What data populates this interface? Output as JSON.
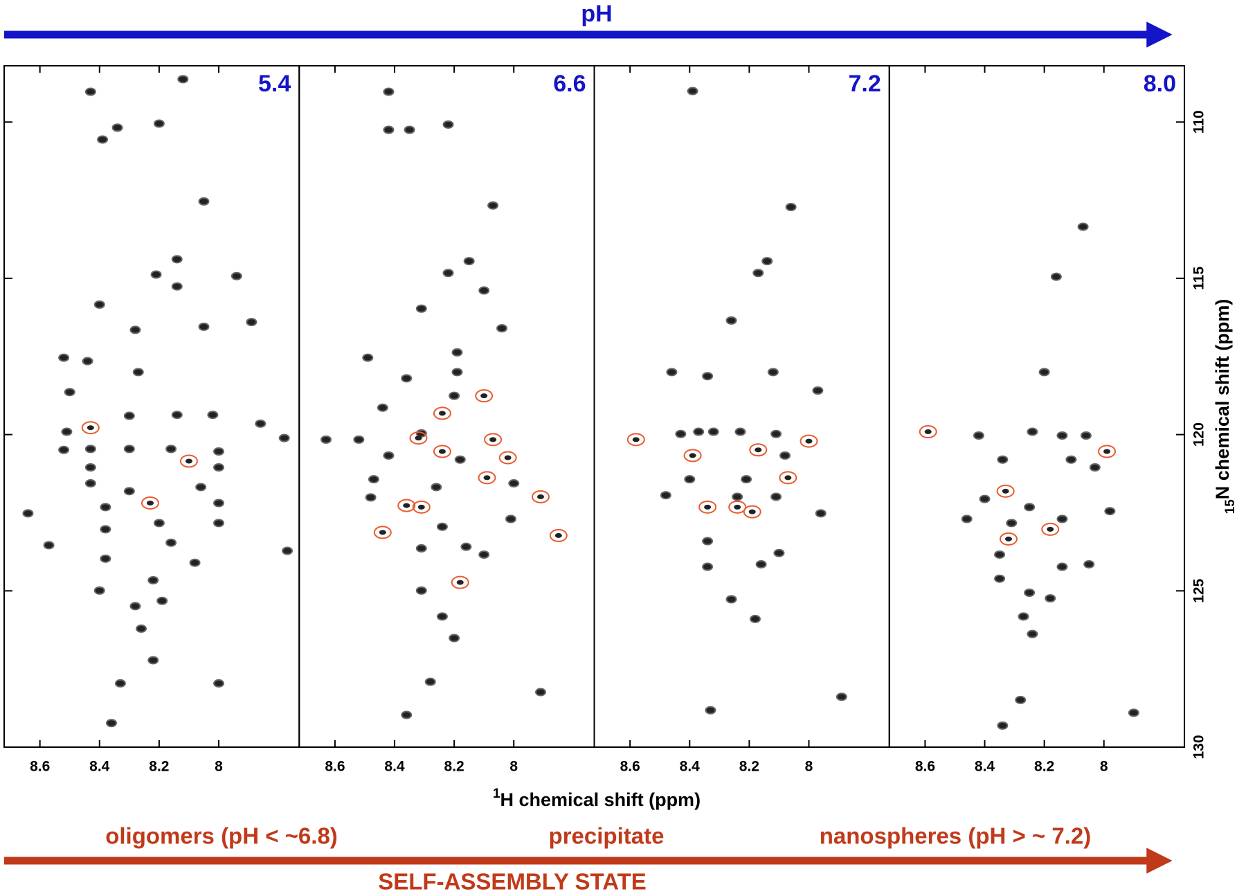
{
  "chart_data": {
    "type": "scatter",
    "title": "pH",
    "title_color": "#1414c8",
    "xlabel_sup": "1",
    "xlabel": "H chemical shift (ppm)",
    "ylabel_sup": "15",
    "ylabel": "N chemical shift (ppm)",
    "xlim": [
      8.72,
      7.73
    ],
    "xticks": [
      8.6,
      8.4,
      8.2,
      8.0
    ],
    "ylim": [
      108.2,
      130
    ],
    "yticks": [
      110,
      115,
      120,
      125,
      130
    ],
    "peak_color": "#222222",
    "marked_color": "#ea5a2e",
    "panels": [
      {
        "label": "5.4",
        "peaks": {
          "x": [
            8.43,
            8.12,
            8.34,
            8.39,
            8.2,
            8.05,
            8.14,
            8.21,
            7.94,
            8.14,
            8.4,
            8.28,
            8.05,
            7.89,
            8.52,
            8.44,
            8.27,
            8.5,
            8.3,
            8.14,
            8.02,
            8.51,
            7.86,
            7.78,
            8.52,
            8.43,
            8.3,
            8.16,
            8.0,
            8.43,
            8.0,
            8.43,
            8.3,
            8.06,
            8.64,
            8.38,
            8.0,
            8.38,
            8.2,
            8.0,
            8.57,
            8.16,
            7.77,
            8.38,
            8.08,
            8.22,
            8.4,
            8.28,
            8.19,
            8.26,
            8.22,
            8.33,
            8.0,
            8.36
          ],
          "y": [
            109.03,
            108.63,
            110.18,
            110.56,
            110.05,
            112.54,
            114.39,
            114.88,
            114.93,
            115.26,
            115.84,
            116.65,
            116.55,
            116.4,
            117.54,
            117.65,
            118.0,
            118.64,
            119.4,
            119.37,
            119.37,
            119.91,
            119.65,
            120.11,
            120.49,
            120.46,
            120.46,
            120.46,
            120.54,
            121.05,
            121.05,
            121.56,
            121.81,
            121.68,
            122.52,
            122.32,
            122.19,
            123.03,
            122.83,
            122.83,
            123.54,
            123.46,
            123.72,
            123.97,
            124.1,
            124.66,
            124.99,
            125.49,
            125.32,
            126.21,
            127.22,
            127.96,
            127.96,
            129.23
          ]
        },
        "marked": {
          "x": [
            8.43,
            8.1,
            8.23
          ],
          "y": [
            119.78,
            120.85,
            122.19
          ]
        }
      },
      {
        "label": "6.6",
        "peaks": {
          "x": [
            8.42,
            8.42,
            8.35,
            8.22,
            8.07,
            8.15,
            8.22,
            8.1,
            8.31,
            8.04,
            8.19,
            8.49,
            8.36,
            8.19,
            8.2,
            8.44,
            8.31,
            8.63,
            8.52,
            8.42,
            8.18,
            8.47,
            8.26,
            8.0,
            8.48,
            8.24,
            8.01,
            8.31,
            8.16,
            8.1,
            8.31,
            8.24,
            8.2,
            8.28,
            7.91,
            8.36
          ],
          "y": [
            109.03,
            110.25,
            110.25,
            110.08,
            112.67,
            114.45,
            114.83,
            115.39,
            115.97,
            116.6,
            117.37,
            117.54,
            118.2,
            118.0,
            118.76,
            119.14,
            119.96,
            120.16,
            120.16,
            120.67,
            120.8,
            121.43,
            121.68,
            121.56,
            122.01,
            122.95,
            122.7,
            123.64,
            123.59,
            123.84,
            124.99,
            125.82,
            126.51,
            127.91,
            128.24,
            128.97
          ]
        },
        "marked": {
          "x": [
            8.1,
            8.24,
            8.32,
            8.24,
            8.07,
            8.02,
            8.09,
            7.91,
            8.36,
            8.31,
            8.44,
            7.85,
            8.18
          ],
          "y": [
            118.76,
            119.32,
            120.11,
            120.54,
            120.16,
            120.74,
            121.38,
            121.99,
            122.27,
            122.32,
            123.13,
            123.23,
            124.73
          ]
        }
      },
      {
        "label": "7.2",
        "peaks": {
          "x": [
            8.39,
            8.06,
            8.14,
            8.17,
            8.26,
            8.46,
            8.34,
            8.12,
            7.97,
            8.37,
            8.43,
            8.32,
            8.23,
            8.11,
            8.08,
            8.4,
            8.21,
            8.48,
            8.24,
            7.96,
            8.11,
            8.34,
            8.1,
            8.34,
            8.16,
            8.26,
            8.18,
            7.89,
            8.33
          ],
          "y": [
            109.01,
            112.72,
            114.45,
            114.83,
            116.35,
            118.0,
            118.13,
            118.0,
            118.59,
            119.91,
            119.98,
            119.91,
            119.91,
            119.98,
            120.67,
            121.43,
            121.43,
            121.94,
            121.99,
            122.52,
            121.99,
            123.41,
            123.79,
            124.23,
            124.15,
            125.27,
            125.9,
            128.39,
            128.82
          ]
        },
        "marked": {
          "x": [
            8.58,
            8.39,
            8.17,
            8.0,
            8.07,
            8.34,
            8.24,
            8.19
          ],
          "y": [
            120.16,
            120.67,
            120.49,
            120.21,
            121.38,
            122.32,
            122.32,
            122.47
          ]
        }
      },
      {
        "label": "8.0",
        "peaks": {
          "x": [
            8.07,
            8.16,
            8.2,
            8.42,
            8.24,
            8.14,
            8.06,
            8.34,
            8.11,
            8.03,
            8.4,
            8.46,
            8.31,
            8.25,
            8.14,
            7.98,
            8.35,
            8.05,
            8.14,
            8.35,
            8.25,
            8.18,
            8.27,
            8.24,
            8.28,
            7.9,
            8.34
          ],
          "y": [
            113.35,
            114.95,
            118.0,
            120.03,
            119.91,
            120.03,
            120.03,
            120.8,
            120.8,
            121.05,
            122.06,
            122.7,
            122.83,
            122.32,
            122.7,
            122.45,
            123.84,
            124.15,
            124.23,
            124.61,
            125.06,
            125.24,
            125.82,
            126.38,
            128.49,
            128.9,
            129.31
          ]
        },
        "marked": {
          "x": [
            8.59,
            7.99,
            8.33,
            8.32,
            8.18
          ],
          "y": [
            119.91,
            120.54,
            121.81,
            123.34,
            123.03
          ]
        }
      }
    ],
    "state_labels": [
      "oligomers (pH < ~6.8)",
      "precipitate",
      "nanospheres (pH > ~ 7.2)"
    ],
    "state_title": "SELF-ASSEMBLY STATE",
    "state_color": "#c03a1a"
  }
}
